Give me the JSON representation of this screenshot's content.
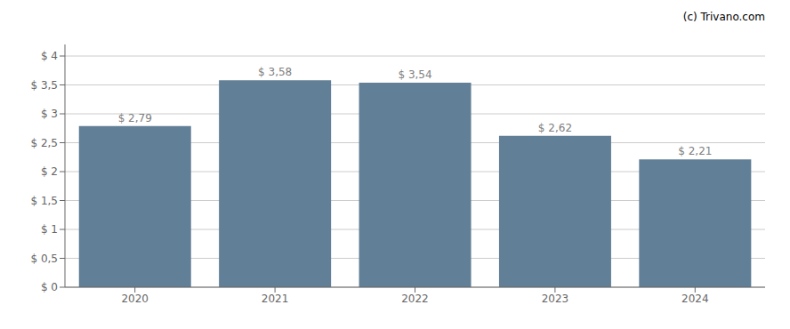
{
  "chart_data": {
    "type": "bar",
    "categories": [
      "2020",
      "2021",
      "2022",
      "2023",
      "2024"
    ],
    "values": [
      2.79,
      3.58,
      3.54,
      2.62,
      2.21
    ],
    "value_labels": [
      "$ 2,79",
      "$ 3,58",
      "$ 3,54",
      "$ 2,62",
      "$ 2,21"
    ],
    "data_labels": true,
    "color": "#617f96",
    "ylim": [
      0,
      4.2
    ],
    "yticks": [
      {
        "value": 0,
        "label": "$ 0"
      },
      {
        "value": 0.5,
        "label": "$ 0,5"
      },
      {
        "value": 1.0,
        "label": "$ 1"
      },
      {
        "value": 1.5,
        "label": "$ 1,5"
      },
      {
        "value": 2.0,
        "label": "$ 2"
      },
      {
        "value": 2.5,
        "label": "$ 2,5"
      },
      {
        "value": 3.0,
        "label": "$ 3"
      },
      {
        "value": 3.5,
        "label": "$ 3,5"
      },
      {
        "value": 4.0,
        "label": "$ 4"
      }
    ],
    "grid": true,
    "annotations": [
      "(c) Trivano.com"
    ]
  }
}
